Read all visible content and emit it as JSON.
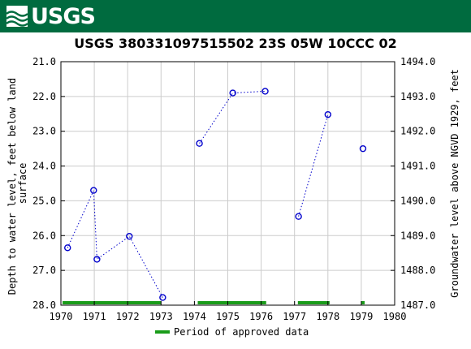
{
  "header": {
    "logo_text": "USGS",
    "logo_icon": "usgs-wave-icon",
    "banner_color": "#006b3f"
  },
  "chart_data": {
    "type": "scatter",
    "title": "USGS 380331097515502 23S 05W 10CCC 02",
    "xlabel": "",
    "ylabel": "Depth to water level, feet below land surface",
    "ylabel_lines": [
      "Depth to water level, feet below land",
      "surface"
    ],
    "y2label": "Groundwater level above NGVD 1929, feet",
    "xlim": [
      1970,
      1980
    ],
    "ylim": [
      21.0,
      28.0
    ],
    "y_inverted": true,
    "y2lim": [
      1487.0,
      1494.0
    ],
    "x_ticks": [
      "1970",
      "1971",
      "1972",
      "1973",
      "1974",
      "1975",
      "1976",
      "1977",
      "1978",
      "1979",
      "1980"
    ],
    "y_ticks": [
      "21.0",
      "22.0",
      "23.0",
      "24.0",
      "25.0",
      "26.0",
      "27.0",
      "28.0"
    ],
    "y2_ticks": [
      "1494.0",
      "1493.0",
      "1492.0",
      "1491.0",
      "1490.0",
      "1489.0",
      "1488.0",
      "1487.0"
    ],
    "grid": true,
    "marker_color": "#0000cc",
    "approved_color": "#1a9c1a",
    "series": [
      {
        "name": "",
        "segment": 1,
        "x": [
          1970.2,
          1970.98,
          1971.08,
          1972.05,
          1973.05
        ],
        "y": [
          26.35,
          24.7,
          26.68,
          26.02,
          27.78
        ]
      },
      {
        "name": "",
        "segment": 2,
        "x": [
          1974.15,
          1975.15,
          1976.12
        ],
        "y": [
          23.35,
          21.9,
          21.85
        ]
      },
      {
        "name": "",
        "segment": 3,
        "x": [
          1977.12,
          1978.0
        ],
        "y": [
          25.45,
          22.52
        ]
      },
      {
        "name": "",
        "segment": 4,
        "x": [
          1979.05
        ],
        "y": [
          23.5
        ]
      }
    ],
    "approved_periods": [
      [
        1970.05,
        1973.0
      ],
      [
        1974.1,
        1976.15
      ],
      [
        1977.1,
        1978.05
      ],
      [
        1979.0,
        1979.1
      ]
    ],
    "legend": {
      "label": "Period of approved data",
      "placement": "bottom-center"
    }
  }
}
